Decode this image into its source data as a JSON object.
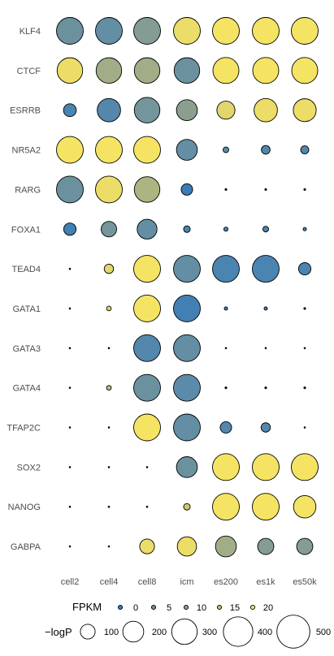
{
  "chart_data": {
    "type": "scatter",
    "subtype": "bubble-matrix",
    "title": "",
    "xlabel": "",
    "ylabel": "",
    "grid": false,
    "legend_position": "bottom",
    "x_categories": [
      "cell2",
      "cell4",
      "cell8",
      "icm",
      "es200",
      "es1k",
      "es50k"
    ],
    "y_categories": [
      "KLF4",
      "CTCF",
      "ESRRB",
      "NR5A2",
      "RARG",
      "FOXA1",
      "TEAD4",
      "GATA1",
      "GATA3",
      "GATA4",
      "TFAP2C",
      "SOX2",
      "NANOG",
      "GABPA"
    ],
    "color_variable": "FPKM",
    "size_variable": "-logP",
    "color_scale": {
      "domain": [
        0,
        20
      ],
      "low": "#3a7db8",
      "mid": "#8c9f8f",
      "high": "#f5e463"
    },
    "color_legend": {
      "title": "FPKM",
      "breaks": [
        0,
        5,
        10,
        15,
        20
      ],
      "labels": [
        "0",
        "5",
        "10",
        "15",
        "20"
      ]
    },
    "size_legend": {
      "title": "−logP",
      "breaks": [
        100,
        200,
        300,
        400,
        500
      ],
      "labels": [
        "100",
        "200",
        "300",
        "400",
        "500"
      ]
    },
    "series": [
      {
        "gene": "KLF4",
        "fpkm": [
          6,
          5,
          9,
          19,
          20,
          20,
          20
        ],
        "neglogp": [
          330,
          330,
          330,
          330,
          330,
          330,
          330
        ]
      },
      {
        "gene": "CTCF",
        "fpkm": [
          19,
          12,
          12,
          6,
          20,
          20,
          20
        ],
        "neglogp": [
          300,
          300,
          300,
          300,
          310,
          310,
          310
        ]
      },
      {
        "gene": "ESRRB",
        "fpkm": [
          2,
          3,
          7,
          10,
          18,
          19,
          19
        ],
        "neglogp": [
          75,
          250,
          300,
          200,
          150,
          250,
          240
        ]
      },
      {
        "gene": "NR5A2",
        "fpkm": [
          20,
          20,
          20,
          5,
          4,
          3,
          3
        ],
        "neglogp": [
          330,
          330,
          330,
          200,
          15,
          35,
          30
        ]
      },
      {
        "gene": "RARG",
        "fpkm": [
          6,
          19,
          13,
          0,
          0,
          0,
          0
        ],
        "neglogp": [
          330,
          330,
          300,
          60,
          3,
          3,
          3
        ]
      },
      {
        "gene": "FOXA1",
        "fpkm": [
          1,
          7,
          5,
          2,
          2,
          2,
          2
        ],
        "neglogp": [
          70,
          110,
          180,
          20,
          8,
          15,
          5
        ]
      },
      {
        "gene": "TEAD4",
        "fpkm": [
          0,
          18,
          20,
          5,
          2,
          2,
          2
        ],
        "neglogp": [
          2,
          40,
          330,
          330,
          330,
          330,
          70
        ]
      },
      {
        "gene": "GATA1",
        "fpkm": [
          0,
          18,
          20,
          1,
          0,
          0,
          0
        ],
        "neglogp": [
          2,
          10,
          330,
          330,
          5,
          5,
          3
        ]
      },
      {
        "gene": "GATA3",
        "fpkm": [
          0,
          0,
          3,
          5,
          0,
          0,
          0
        ],
        "neglogp": [
          2,
          2,
          330,
          330,
          2,
          2,
          2
        ]
      },
      {
        "gene": "GATA4",
        "fpkm": [
          0,
          15,
          6,
          4,
          0,
          0,
          0
        ],
        "neglogp": [
          2,
          10,
          330,
          330,
          3,
          3,
          3
        ]
      },
      {
        "gene": "TFAP2C",
        "fpkm": [
          0,
          0,
          20,
          5,
          3,
          3,
          0
        ],
        "neglogp": [
          2,
          2,
          330,
          330,
          60,
          40,
          2
        ]
      },
      {
        "gene": "SOX2",
        "fpkm": [
          0,
          0,
          0,
          6,
          20,
          20,
          20
        ],
        "neglogp": [
          2,
          2,
          2,
          200,
          330,
          330,
          330
        ]
      },
      {
        "gene": "NANOG",
        "fpkm": [
          0,
          0,
          0,
          16,
          20,
          20,
          20
        ],
        "neglogp": [
          2,
          2,
          2,
          20,
          330,
          330,
          230
        ]
      },
      {
        "gene": "GABPA",
        "fpkm": [
          0,
          0,
          19,
          19,
          12,
          9,
          9
        ],
        "neglogp": [
          2,
          2,
          100,
          170,
          200,
          120,
          120
        ]
      }
    ]
  }
}
